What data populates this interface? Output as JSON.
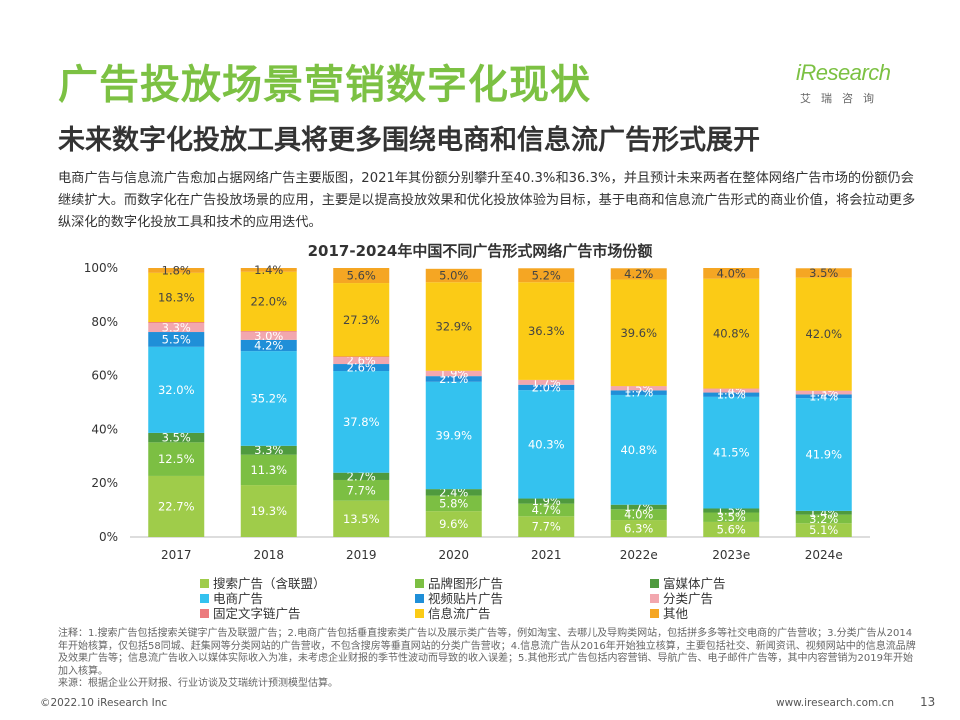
{
  "header": {
    "title": "广告投放场景营销数字化现状",
    "subtitle": "未来数字化投放工具将更多围绕电商和信息流广告形式展开",
    "logo_text": "iResearch",
    "logo_cn": "艾瑞咨询"
  },
  "intro": "电商广告与信息流广告愈加占据网络广告主要版图，2021年其份额分别攀升至40.3%和36.3%，并且预计未来两者在整体网络广告市场的份额仍会继续扩大。而数字化在广告投放场景的应用，主要是以提高投放效果和优化投放体验为目标，基于电商和信息流广告形式的商业价值，将会拉动更多纵深化的数字化投放工具和技术的应用迭代。",
  "colors": {
    "accent": "#7cc143"
  },
  "chart_data": {
    "type": "bar",
    "stacked": true,
    "title": "2017-2024年中国不同广告形式网络广告市场份额",
    "categories": [
      "2017",
      "2018",
      "2019",
      "2020",
      "2021",
      "2022e",
      "2023e",
      "2024e"
    ],
    "y_ticks": [
      "0%",
      "20%",
      "40%",
      "60%",
      "80%",
      "100%"
    ],
    "ylim": [
      0,
      100
    ],
    "series": [
      {
        "name": "搜索广告（含联盟）",
        "color": "#9fcc4a",
        "values": [
          22.7,
          19.3,
          13.5,
          9.6,
          7.7,
          6.3,
          5.6,
          5.1
        ],
        "labels": [
          "22.7%",
          "19.3%",
          "13.5%",
          "9.6%",
          "7.7%",
          "6.3%",
          "5.6%",
          "5.1%"
        ]
      },
      {
        "name": "品牌图形广告",
        "color": "#7cbf43",
        "values": [
          12.5,
          11.3,
          7.7,
          5.8,
          4.7,
          4.0,
          3.5,
          3.2
        ],
        "labels": [
          "12.5%",
          "11.3%",
          "7.7%",
          "5.8%",
          "4.7%",
          "4.0%",
          "3.5%",
          "3.2%"
        ]
      },
      {
        "name": "富媒体广告",
        "color": "#4f9a3e",
        "values": [
          3.5,
          3.3,
          2.7,
          2.4,
          1.9,
          1.7,
          1.5,
          1.4
        ],
        "labels": [
          "3.5%",
          "3.3%",
          "2.7%",
          "2.4%",
          "1.9%",
          "1.7%",
          "1.5%",
          "1.4%"
        ]
      },
      {
        "name": "电商广告",
        "color": "#34c2ef",
        "values": [
          32.0,
          35.2,
          37.8,
          39.9,
          40.3,
          40.8,
          41.5,
          41.9
        ],
        "labels": [
          "32.0%",
          "35.2%",
          "37.8%",
          "39.9%",
          "40.3%",
          "40.8%",
          "41.5%",
          "41.9%"
        ]
      },
      {
        "name": "视频贴片广告",
        "color": "#1f8fd8",
        "values": [
          5.5,
          4.2,
          2.6,
          2.1,
          2.0,
          1.7,
          1.6,
          1.4
        ],
        "labels": [
          "5.5%",
          "4.2%",
          "2.6%",
          "2.1%",
          "2.0%",
          "1.7%",
          "1.6%",
          "1.4%"
        ]
      },
      {
        "name": "分类广告",
        "color": "#f2a7ae",
        "values": [
          3.3,
          3.0,
          2.6,
          1.9,
          1.7,
          1.5,
          1.4,
          1.3
        ],
        "labels": [
          "3.3%",
          "3.0%",
          "2.6%",
          "1.9%",
          "1.7%",
          "1.5%",
          "1.4%",
          "1.3%"
        ]
      },
      {
        "name": "固定文字链广告",
        "color": "#ec7a7d",
        "values": [
          0.4,
          0.3,
          0.2,
          0.1,
          0.1,
          0.1,
          0.1,
          0.1
        ],
        "labels": [
          "",
          "",
          "",
          "",
          "",
          "",
          "",
          ""
        ]
      },
      {
        "name": "信息流广告",
        "color": "#fbcb16",
        "values": [
          18.3,
          22.0,
          27.3,
          32.9,
          36.3,
          39.6,
          40.8,
          42.0
        ],
        "labels": [
          "18.3%",
          "22.0%",
          "27.3%",
          "32.9%",
          "36.3%",
          "39.6%",
          "40.8%",
          "42.0%"
        ]
      },
      {
        "name": "其他",
        "color": "#f5a623",
        "values": [
          1.8,
          1.4,
          5.6,
          5.0,
          5.2,
          4.2,
          4.0,
          3.5
        ],
        "labels": [
          "1.8%",
          "1.4%",
          "5.6%",
          "5.0%",
          "5.2%",
          "4.2%",
          "4.0%",
          "3.5%"
        ]
      }
    ]
  },
  "notes": [
    "注释：1.搜索广告包括搜索关键字广告及联盟广告；2.电商广告包括垂直搜索类广告以及展示类广告等，例如淘宝、去哪儿及导购类网站，包括拼多多等社交电商的广告营收；3.分类广告从2014年开始核算，仅包括58同城、赶集网等分类网站的广告营收，不包含搜房等垂直网站的分类广告营收；4.信息流广告从2016年开始独立核算，主要包括社交、新闻资讯、视频网站中的信息流品牌及效果广告等；信息流广告收入以媒体实际收入为准，未考虑企业财报的季节性波动而导致的收入误差；5.其他形式广告包括内容营销、导航广告、电子邮件广告等，其中内容营销为2019年开始加入核算。",
    "来源：根据企业公开财报、行业访谈及艾瑞统计预测模型估算。"
  ],
  "footer": {
    "copyright": "©2022.10 iResearch Inc",
    "website": "www.iresearch.com.cn",
    "page_number": "13"
  }
}
